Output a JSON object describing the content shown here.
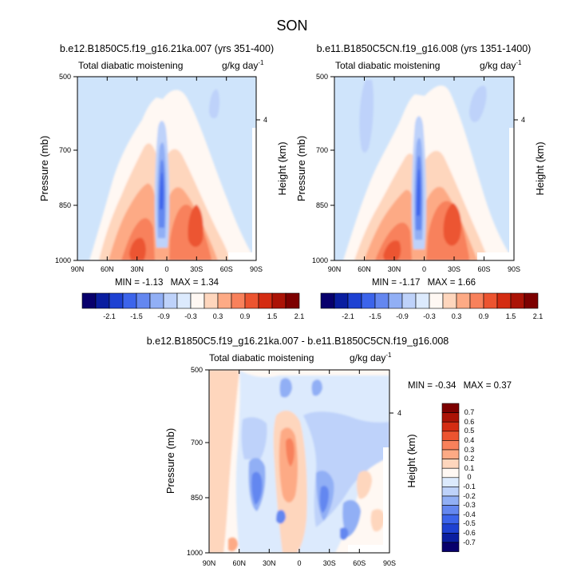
{
  "figure": {
    "title": "SON"
  },
  "palette": {
    "levels": [
      -2.1,
      -1.8,
      -1.5,
      -1.2,
      -0.9,
      -0.6,
      -0.3,
      0,
      0.3,
      0.6,
      0.9,
      1.2,
      1.5,
      1.8,
      2.1
    ],
    "diff_levels": [
      -0.7,
      -0.6,
      -0.5,
      -0.4,
      -0.3,
      -0.2,
      -0.1,
      0,
      0.1,
      0.2,
      0.3,
      0.4,
      0.5,
      0.6,
      0.7
    ],
    "colors": [
      "#08006c",
      "#0a1ea0",
      "#1e41d2",
      "#3c64eb",
      "#6487f0",
      "#91aff5",
      "#bed2fa",
      "#dceafd",
      "#fff8f3",
      "#fed6bd",
      "#fdaa85",
      "#f8815b",
      "#ec5430",
      "#d42c12",
      "#ab1306",
      "#7d0000"
    ],
    "background_color": "#cfe4fb"
  },
  "chart_data": [
    {
      "type": "contour",
      "title": "b.e12.B1850C5.f19_g16.21ka.007 (yrs 351-400)",
      "left_string": "Total diabatic moistening",
      "right_string": "g/kg day",
      "units_exponent": "-1",
      "ylabel": "Pressure (mb)",
      "right_ylabel": "Height (km)",
      "xticks": [
        "90N",
        "60N",
        "30N",
        "0",
        "30S",
        "60S",
        "90S"
      ],
      "yticks": [
        "500",
        "700",
        "850",
        "1000"
      ],
      "height_ticks": [
        "4"
      ],
      "x_range": [
        90,
        -90
      ],
      "y_range": [
        500,
        1000
      ],
      "min_label": "MIN =",
      "min_value": "-1.13",
      "max_label": "MAX =",
      "max_value": "1.34",
      "colorbar_labels": [
        "-2.1",
        "-1.5",
        "-0.9",
        "-0.3",
        "0.3",
        "0.9",
        "1.5",
        "2.1"
      ]
    },
    {
      "type": "contour",
      "title": "b.e11.B1850C5CN.f19_g16.008 (yrs 1351-1400)",
      "left_string": "Total diabatic moistening",
      "right_string": "g/kg day",
      "units_exponent": "-1",
      "ylabel": "Pressure (mb)",
      "right_ylabel": "Height (km)",
      "xticks": [
        "90N",
        "60N",
        "30N",
        "0",
        "30S",
        "60S",
        "90S"
      ],
      "yticks": [
        "500",
        "700",
        "850",
        "1000"
      ],
      "height_ticks": [
        "4"
      ],
      "x_range": [
        90,
        -90
      ],
      "y_range": [
        500,
        1000
      ],
      "min_label": "MIN =",
      "min_value": "-1.17",
      "max_label": "MAX =",
      "max_value": "1.66",
      "colorbar_labels": [
        "-2.1",
        "-1.5",
        "-0.9",
        "-0.3",
        "0.3",
        "0.9",
        "1.5",
        "2.1"
      ]
    },
    {
      "type": "contour",
      "title": "b.e12.B1850C5.f19_g16.21ka.007 - b.e11.B1850C5CN.f19_g16.008",
      "left_string": "Total diabatic moistening",
      "right_string": "g/kg day",
      "units_exponent": "-1",
      "ylabel": "Pressure (mb)",
      "right_ylabel": "Height (km)",
      "xticks": [
        "90N",
        "60N",
        "30N",
        "0",
        "30S",
        "60S",
        "90S"
      ],
      "yticks": [
        "500",
        "700",
        "850",
        "1000"
      ],
      "height_ticks": [
        "4"
      ],
      "x_range": [
        90,
        -90
      ],
      "y_range": [
        500,
        1000
      ],
      "min_label": "MIN =",
      "min_value": "-0.34",
      "max_label": "MAX =",
      "max_value": "0.37",
      "colorbar_labels": [
        "0.7",
        "0.6",
        "0.5",
        "0.4",
        "0.3",
        "0.2",
        "0.1",
        "0",
        "-0.1",
        "-0.2",
        "-0.3",
        "-0.4",
        "-0.5",
        "-0.6",
        "-0.7"
      ]
    }
  ]
}
